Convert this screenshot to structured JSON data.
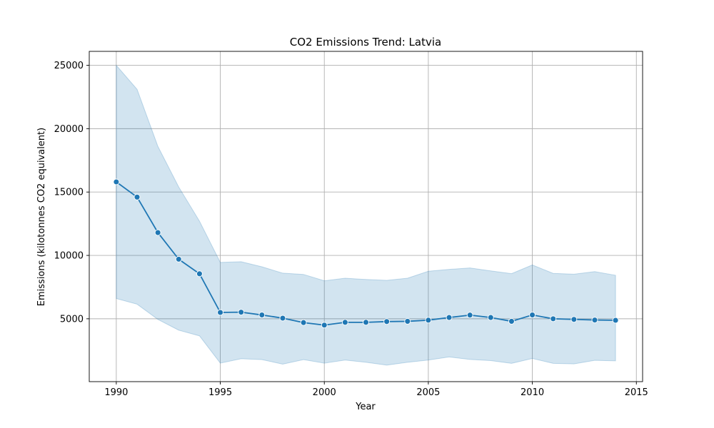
{
  "chart_data": {
    "type": "line",
    "title": "CO2 Emissions Trend: Latvia",
    "xlabel": "Year",
    "ylabel": "Emissions (kilotonnes CO2 equivalent)",
    "xlim": [
      1988.7,
      2015.3
    ],
    "ylim": [
      40,
      26100
    ],
    "xticks": [
      1990,
      1995,
      2000,
      2005,
      2010,
      2015
    ],
    "yticks": [
      5000,
      10000,
      15000,
      20000,
      25000
    ],
    "grid": true,
    "colors": {
      "line": "#1f77b4",
      "band": "#1f77b4"
    },
    "x": [
      1990,
      1991,
      1992,
      1993,
      1994,
      1995,
      1996,
      1997,
      1998,
      1999,
      2000,
      2001,
      2002,
      2003,
      2004,
      2005,
      2006,
      2007,
      2008,
      2009,
      2010,
      2011,
      2012,
      2013,
      2014
    ],
    "y": [
      15800,
      14600,
      11800,
      9700,
      8550,
      5500,
      5520,
      5300,
      5050,
      4700,
      4500,
      4720,
      4720,
      4780,
      4800,
      4890,
      5100,
      5290,
      5100,
      4800,
      5300,
      5000,
      4950,
      4900,
      4880
    ],
    "band_upper": [
      25000,
      23100,
      18600,
      15400,
      12700,
      9450,
      9500,
      9100,
      8600,
      8500,
      8000,
      8200,
      8100,
      8030,
      8200,
      8750,
      8900,
      9010,
      8780,
      8560,
      9250,
      8580,
      8520,
      8720,
      8430
    ],
    "band_lower": [
      6600,
      6150,
      4950,
      4100,
      3650,
      1500,
      1850,
      1780,
      1420,
      1780,
      1500,
      1740,
      1570,
      1340,
      1570,
      1740,
      1990,
      1790,
      1700,
      1480,
      1870,
      1480,
      1440,
      1720,
      1680
    ]
  }
}
